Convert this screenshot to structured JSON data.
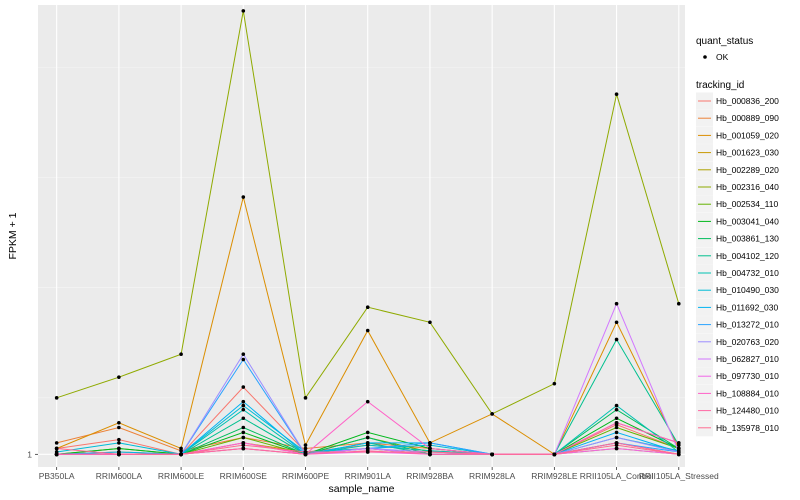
{
  "chart_data": {
    "type": "line",
    "title": "",
    "xlabel": "sample_name",
    "ylabel": "FPKM + 1",
    "y_tick_labels": [
      {
        "value": 1,
        "label": "1"
      }
    ],
    "ylim": [
      0.9,
      42
    ],
    "y_scale": "log10",
    "grid": true,
    "legend_position": "right",
    "categories": [
      "PB350LA",
      "RRIM600LA",
      "RRIM600LE",
      "RRIM600SE",
      "RRIM600PE",
      "RRIM901LA",
      "RRIM928BA",
      "RRIM928LA",
      "RRIM928LE",
      "RRII105LA_Control",
      "RRII105LA_Stressed"
    ],
    "point_legend": {
      "title": "quant_status",
      "items": [
        "OK"
      ]
    },
    "series_legend_title": "tracking_id",
    "series": [
      {
        "name": "Hb_000836_200",
        "color": "#F8766D",
        "values": [
          1.05,
          1.13,
          1,
          1.75,
          1.02,
          1.08,
          1.03,
          1,
          1,
          1.28,
          1.05
        ]
      },
      {
        "name": "Hb_000889_090",
        "color": "#EC8239",
        "values": [
          1.1,
          1.25,
          1.03,
          1.15,
          1.05,
          1.1,
          1.05,
          1,
          1,
          1.3,
          1.1
        ]
      },
      {
        "name": "Hb_001059_020",
        "color": "#DB8E00",
        "values": [
          1.05,
          1.3,
          1.05,
          8.5,
          1.08,
          2.8,
          1.1,
          1.4,
          1,
          3,
          1.05
        ]
      },
      {
        "name": "Hb_001623_030",
        "color": "#C79800",
        "values": [
          1,
          1.02,
          1,
          1.1,
          1.02,
          1.05,
          1,
          1,
          1,
          1.1,
          1
        ]
      },
      {
        "name": "Hb_002289_020",
        "color": "#AEA200",
        "values": [
          1,
          1,
          1,
          1.05,
          1,
          1.05,
          1,
          1,
          1,
          1.05,
          1
        ]
      },
      {
        "name": "Hb_002316_040",
        "color": "#8FAA00",
        "values": [
          1.6,
          1.9,
          2.3,
          40,
          1.6,
          3.4,
          3,
          1.4,
          1.8,
          20,
          3.5
        ]
      },
      {
        "name": "Hb_002534_110",
        "color": "#64B200",
        "values": [
          1,
          1.05,
          1,
          1.15,
          1,
          1.15,
          1.02,
          1,
          1,
          1.25,
          1.05
        ]
      },
      {
        "name": "Hb_003041_040",
        "color": "#00B81B",
        "values": [
          1,
          1.05,
          1,
          1.2,
          1,
          1.2,
          1.05,
          1,
          1,
          1.35,
          1.05
        ]
      },
      {
        "name": "Hb_003861_130",
        "color": "#00BD5C",
        "values": [
          1,
          1,
          1,
          1.25,
          1,
          1.15,
          1,
          1,
          1,
          1.45,
          1.05
        ]
      },
      {
        "name": "Hb_004102_120",
        "color": "#00C08E",
        "values": [
          1,
          1,
          1,
          1.35,
          1,
          1.1,
          1,
          1,
          1,
          2.6,
          1.08
        ]
      },
      {
        "name": "Hb_004732_010",
        "color": "#00C1B2",
        "values": [
          1,
          1,
          1,
          1.45,
          1,
          1.08,
          1.03,
          1,
          1,
          1.5,
          1.02
        ]
      },
      {
        "name": "Hb_010490_030",
        "color": "#00BCD6",
        "values": [
          1.02,
          1.1,
          1,
          1.5,
          1.02,
          1.05,
          1.08,
          1,
          1,
          1.15,
          1.03
        ]
      },
      {
        "name": "Hb_011692_030",
        "color": "#00B3F2",
        "values": [
          1,
          1.02,
          1,
          1.55,
          1,
          1.1,
          1.1,
          1,
          1,
          1.2,
          1.02
        ]
      },
      {
        "name": "Hb_013272_010",
        "color": "#29A3FF",
        "values": [
          1,
          1,
          1,
          2.2,
          1,
          1.05,
          1.1,
          1,
          1,
          1.1,
          1.02
        ]
      },
      {
        "name": "Hb_020763_020",
        "color": "#9C8DFF",
        "values": [
          1,
          1,
          1,
          2.3,
          1,
          1.05,
          1.02,
          1,
          1,
          1.15,
          1.02
        ]
      },
      {
        "name": "Hb_062827_010",
        "color": "#D277FF",
        "values": [
          1,
          1,
          1,
          1.1,
          1,
          1.05,
          1,
          1,
          1,
          3.5,
          1.02
        ]
      },
      {
        "name": "Hb_097730_010",
        "color": "#F166E8",
        "values": [
          1,
          1,
          1,
          1.05,
          1,
          1.02,
          1,
          1,
          1,
          1.05,
          1
        ]
      },
      {
        "name": "Hb_108884_010",
        "color": "#FF61C7",
        "values": [
          1,
          1,
          1,
          1.1,
          1,
          1.55,
          1.05,
          1,
          1,
          1.3,
          1.1
        ]
      },
      {
        "name": "Hb_124480_010",
        "color": "#FF67A4",
        "values": [
          1,
          1,
          1,
          1.05,
          1,
          1.03,
          1,
          1,
          1,
          1.1,
          1
        ]
      },
      {
        "name": "Hb_135978_010",
        "color": "#FF6C91",
        "values": [
          1.05,
          1,
          1,
          1.08,
          1.02,
          1.02,
          1.02,
          1,
          1,
          1.08,
          1
        ]
      }
    ]
  }
}
